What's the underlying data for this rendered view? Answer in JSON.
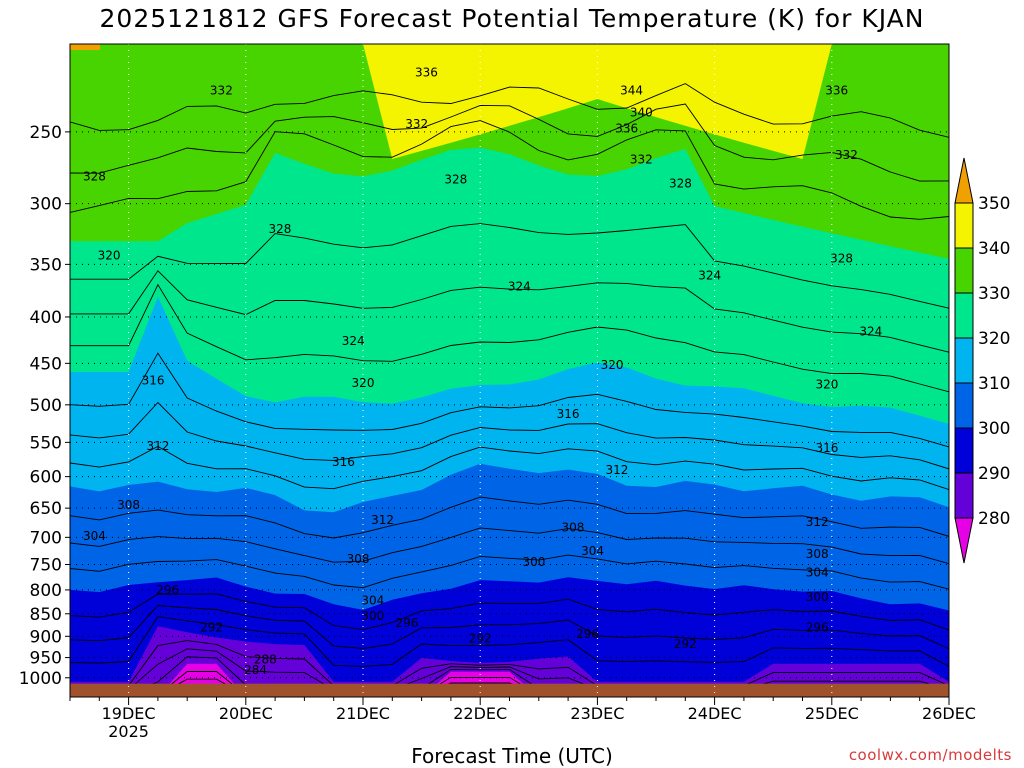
{
  "title": "2025121812 GFS Forecast Potential Temperature (K) for KJAN",
  "credit": "coolwx.com/modelts",
  "chart_data": {
    "type": "heatmap",
    "title": "2025121812 GFS Forecast Potential Temperature (K) for KJAN",
    "xlabel": "Forecast Time (UTC)",
    "ylabel": "",
    "x_ticks": [
      {
        "label": "19DEC",
        "sublabel": "2025",
        "hours": 12
      },
      {
        "label": "20DEC",
        "hours": 36
      },
      {
        "label": "21DEC",
        "hours": 60
      },
      {
        "label": "22DEC",
        "hours": 84
      },
      {
        "label": "23DEC",
        "hours": 108
      },
      {
        "label": "24DEC",
        "hours": 132
      },
      {
        "label": "25DEC",
        "hours": 156
      },
      {
        "label": "26DEC",
        "hours": 180
      }
    ],
    "xlim_hours": [
      0,
      180
    ],
    "y_ticks": [
      250,
      300,
      350,
      400,
      450,
      500,
      550,
      600,
      650,
      700,
      750,
      800,
      850,
      900,
      950,
      1000
    ],
    "ylim_hPa": [
      200,
      1050
    ],
    "colorbar": {
      "levels": [
        "350",
        "340",
        "330",
        "320",
        "310",
        "300",
        "290",
        "280"
      ],
      "bands": [
        {
          "range": ">350",
          "color": "#f0a000"
        },
        {
          "range": "340-350",
          "color": "#f4f400"
        },
        {
          "range": "330-340",
          "color": "#48d400"
        },
        {
          "range": "320-330",
          "color": "#00e68c"
        },
        {
          "range": "310-320",
          "color": "#00b4f0"
        },
        {
          "range": "300-310",
          "color": "#0064e6"
        },
        {
          "range": "290-300",
          "color": "#0000d8"
        },
        {
          "range": "280-290",
          "color": "#6400d8"
        },
        {
          "range": "<280",
          "color": "#e600e6"
        }
      ]
    },
    "contour_interval_K": 4,
    "contour_labels": [
      {
        "text": "336",
        "hours": 73,
        "p": 215
      },
      {
        "text": "344",
        "hours": 115,
        "p": 225
      },
      {
        "text": "336",
        "hours": 157,
        "p": 225
      },
      {
        "text": "332",
        "hours": 31,
        "p": 225
      },
      {
        "text": "340",
        "hours": 117,
        "p": 238
      },
      {
        "text": "332",
        "hours": 71,
        "p": 245
      },
      {
        "text": "336",
        "hours": 114,
        "p": 248
      },
      {
        "text": "332",
        "hours": 117,
        "p": 268
      },
      {
        "text": "332",
        "hours": 159,
        "p": 265
      },
      {
        "text": "328",
        "hours": 5,
        "p": 280
      },
      {
        "text": "328",
        "hours": 79,
        "p": 282
      },
      {
        "text": "328",
        "hours": 125,
        "p": 285
      },
      {
        "text": "328",
        "hours": 43,
        "p": 320
      },
      {
        "text": "320",
        "hours": 8,
        "p": 342
      },
      {
        "text": "328",
        "hours": 158,
        "p": 345
      },
      {
        "text": "324",
        "hours": 92,
        "p": 370
      },
      {
        "text": "324",
        "hours": 131,
        "p": 360
      },
      {
        "text": "324",
        "hours": 164,
        "p": 415
      },
      {
        "text": "324",
        "hours": 58,
        "p": 425
      },
      {
        "text": "316",
        "hours": 17,
        "p": 470
      },
      {
        "text": "320",
        "hours": 60,
        "p": 473
      },
      {
        "text": "320",
        "hours": 111,
        "p": 452
      },
      {
        "text": "320",
        "hours": 155,
        "p": 475
      },
      {
        "text": "316",
        "hours": 102,
        "p": 512
      },
      {
        "text": "312",
        "hours": 18,
        "p": 555
      },
      {
        "text": "316",
        "hours": 56,
        "p": 578
      },
      {
        "text": "316",
        "hours": 155,
        "p": 558
      },
      {
        "text": "312",
        "hours": 112,
        "p": 590
      },
      {
        "text": "308",
        "hours": 12,
        "p": 645
      },
      {
        "text": "312",
        "hours": 64,
        "p": 670
      },
      {
        "text": "312",
        "hours": 153,
        "p": 673
      },
      {
        "text": "308",
        "hours": 103,
        "p": 683
      },
      {
        "text": "304",
        "hours": 5,
        "p": 698
      },
      {
        "text": "304",
        "hours": 107,
        "p": 725
      },
      {
        "text": "308",
        "hours": 59,
        "p": 740
      },
      {
        "text": "300",
        "hours": 95,
        "p": 745
      },
      {
        "text": "308",
        "hours": 153,
        "p": 730
      },
      {
        "text": "304",
        "hours": 153,
        "p": 765
      },
      {
        "text": "296",
        "hours": 20,
        "p": 800
      },
      {
        "text": "304",
        "hours": 62,
        "p": 822
      },
      {
        "text": "300",
        "hours": 153,
        "p": 815
      },
      {
        "text": "300",
        "hours": 62,
        "p": 855
      },
      {
        "text": "296",
        "hours": 69,
        "p": 870
      },
      {
        "text": "296",
        "hours": 153,
        "p": 880
      },
      {
        "text": "292",
        "hours": 29,
        "p": 880
      },
      {
        "text": "296",
        "hours": 106,
        "p": 895
      },
      {
        "text": "292",
        "hours": 84,
        "p": 905
      },
      {
        "text": "292",
        "hours": 126,
        "p": 918
      },
      {
        "text": "288",
        "hours": 40,
        "p": 955
      },
      {
        "text": "284",
        "hours": 38,
        "p": 980
      }
    ]
  },
  "axis_labels": {
    "x": "Forecast Time (UTC)"
  }
}
